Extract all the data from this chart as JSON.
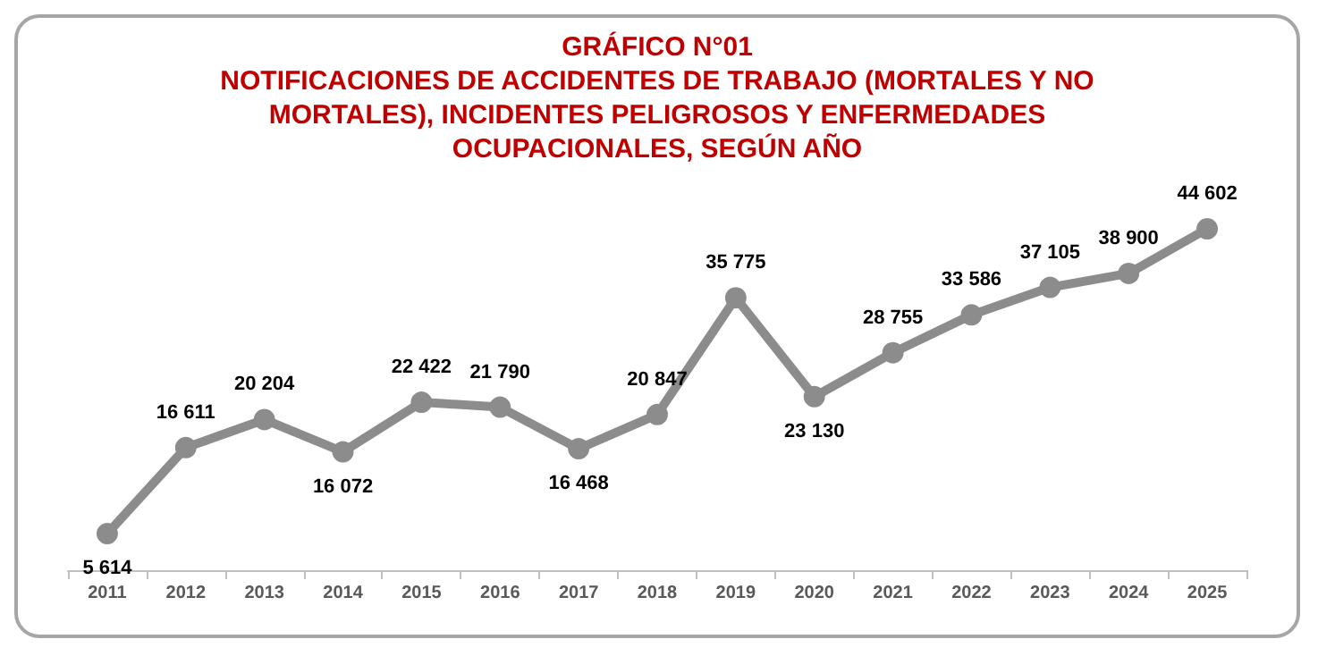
{
  "chart_data": {
    "type": "line",
    "title": "GRÁFICO N°01",
    "subtitle": "NOTIFICACIONES DE ACCIDENTES DE TRABAJO (MORTALES Y NO\nMORTALES), INCIDENTES PELIGROSOS Y ENFERMEDADES\nOCUPACIONALES, SEGÚN AÑO",
    "categories": [
      "2011",
      "2012",
      "2013",
      "2014",
      "2015",
      "2016",
      "2017",
      "2018",
      "2019",
      "2020",
      "2021",
      "2022",
      "2023",
      "2024",
      "2025"
    ],
    "series": [
      {
        "color": "#8c8c8c",
        "values": [
          5614,
          16611,
          20204,
          16072,
          22422,
          21790,
          16468,
          20847,
          35775,
          23130,
          28755,
          33586,
          37105,
          38900,
          44602
        ]
      }
    ],
    "data_labels": true,
    "marker": "circle",
    "line_style": "solid",
    "tick_labels": "x"
  }
}
